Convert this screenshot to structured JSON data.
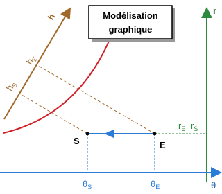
{
  "title_lines": [
    "Modélisation",
    "graphique"
  ],
  "axes": {
    "r": "r",
    "theta": "θ",
    "h": "h"
  },
  "points": [
    {
      "label": "S"
    },
    {
      "label": "E"
    }
  ],
  "labels": {
    "h_E": {
      "main": "h",
      "sub": "E"
    },
    "h_S": {
      "main": "h",
      "sub": "S"
    },
    "theta_S": {
      "main": "θ",
      "sub": "S"
    },
    "theta_E": {
      "main": "θ",
      "sub": "E"
    },
    "r_equal": [
      "r",
      "E",
      "=r",
      "S"
    ]
  }
}
